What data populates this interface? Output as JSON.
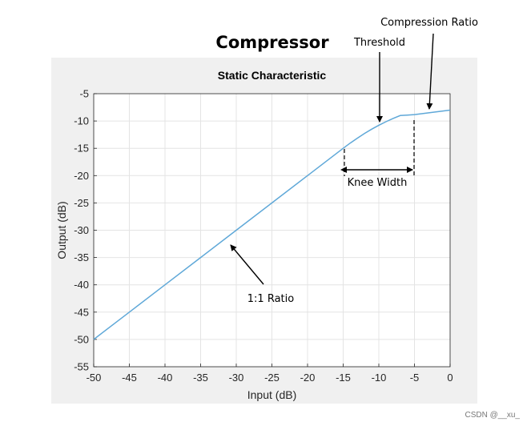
{
  "figure": {
    "title": "Compressor",
    "watermark": "CSDN @__xu_"
  },
  "colors": {
    "figure_bg": "#f0f0f0",
    "axes_bg": "#ffffff",
    "grid": "#e4e4e4",
    "line": "#5fa8d8",
    "text": "#262626"
  },
  "chart_data": {
    "type": "line",
    "title": "Static Characteristic",
    "xlabel": "Input (dB)",
    "ylabel": "Output (dB)",
    "xlim": [
      -50,
      0
    ],
    "ylim": [
      -55,
      -5
    ],
    "xticks": [
      -50,
      -45,
      -40,
      -35,
      -30,
      -25,
      -20,
      -15,
      -10,
      -5,
      0
    ],
    "yticks": [
      -55,
      -50,
      -45,
      -40,
      -35,
      -30,
      -25,
      -20,
      -15,
      -10,
      -5
    ],
    "grid": true,
    "x": [
      -50,
      -45,
      -40,
      -35,
      -30,
      -25,
      -20,
      -15,
      -14,
      -13,
      -12,
      -11,
      -10,
      -9,
      -8,
      -7,
      -6,
      -5,
      -4,
      -3,
      -2,
      -1,
      0
    ],
    "y": [
      -50,
      -45,
      -40,
      -35,
      -30,
      -25,
      -20,
      -15,
      -14.03,
      -13.13,
      -12.28,
      -11.5,
      -10.78,
      -10.13,
      -9.53,
      -9.0,
      -8.53,
      -8.83,
      -8.67,
      -8.5,
      -8.33,
      -8.17,
      -8.0
    ],
    "annotations": [
      {
        "text": "Threshold"
      },
      {
        "text": "Compression Ratio"
      },
      {
        "text": "Knee Width"
      },
      {
        "text": "1:1 Ratio"
      }
    ]
  }
}
